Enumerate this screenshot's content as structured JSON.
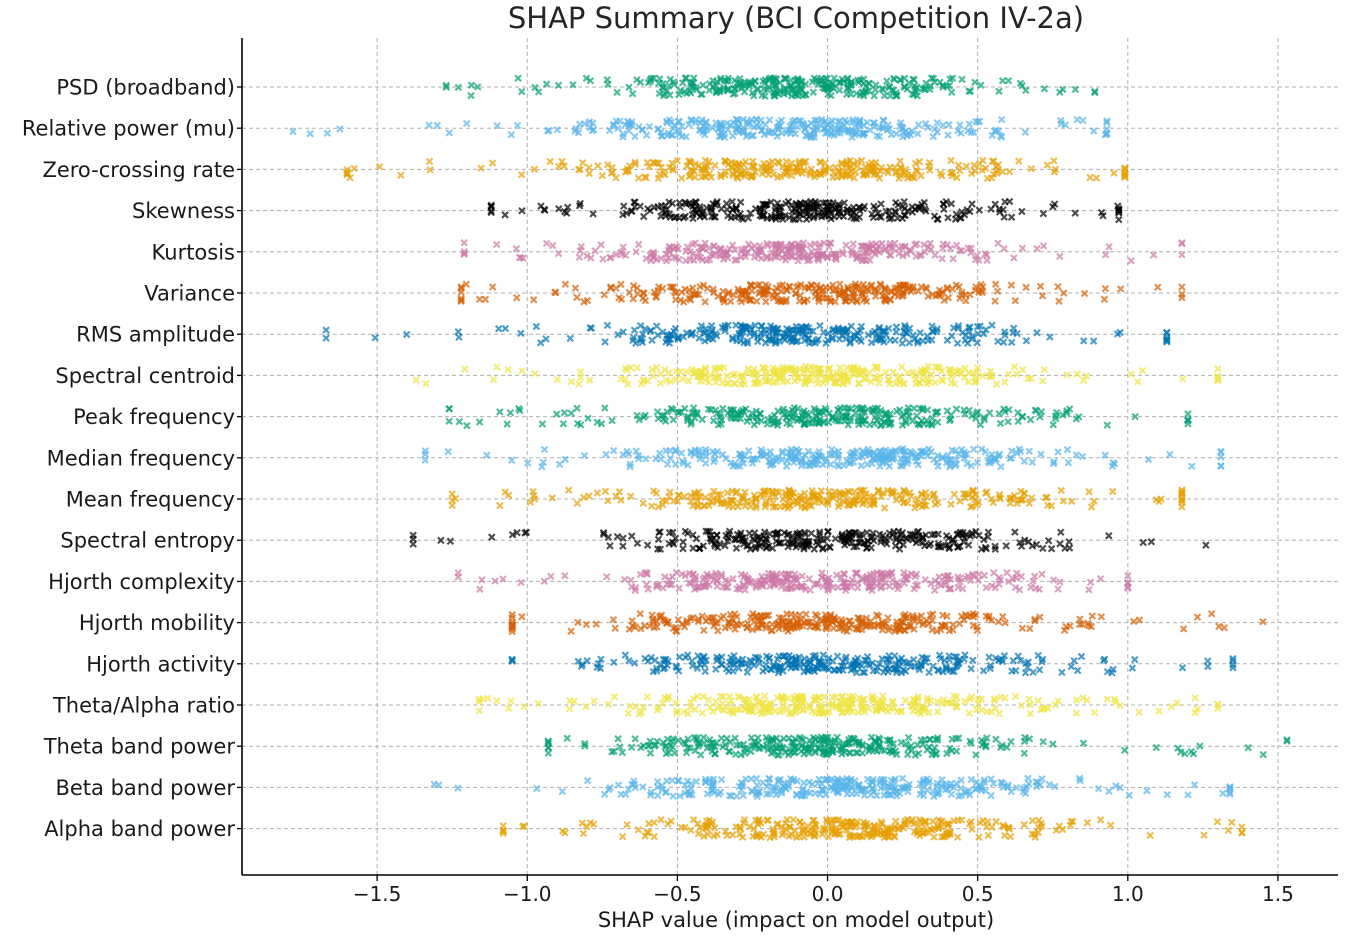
{
  "chart_data": {
    "type": "scatter",
    "title": "SHAP Summary (BCI Competition IV-2a)",
    "xlabel": "SHAP value (impact on model output)",
    "ylabel": "",
    "xlim": [
      -1.95,
      1.7
    ],
    "xticks": [
      -1.5,
      -1.0,
      -0.5,
      0.0,
      0.5,
      1.0,
      1.5
    ],
    "xtick_labels": [
      "−1.5",
      "−1.0",
      "−0.5",
      "0.0",
      "0.5",
      "1.0",
      "1.5"
    ],
    "grid": true,
    "marker": "x",
    "features": [
      {
        "name": "PSD (broadband)",
        "color": "#009E73",
        "min": -1.27,
        "max": 0.89,
        "core": [
          -0.85,
          0.75
        ]
      },
      {
        "name": "Relative power (mu)",
        "color": "#56B4E9",
        "min": -1.78,
        "max": 0.93,
        "core": [
          -1.05,
          0.7
        ]
      },
      {
        "name": "Zero-crossing rate",
        "color": "#E69F00",
        "min": -1.6,
        "max": 0.99,
        "core": [
          -1.05,
          0.85
        ]
      },
      {
        "name": "Skewness",
        "color": "#000000",
        "min": -1.12,
        "max": 0.97,
        "core": [
          -1.03,
          0.85
        ]
      },
      {
        "name": "Kurtosis",
        "color": "#CC79A7",
        "min": -1.21,
        "max": 1.18,
        "core": [
          -1.03,
          0.9
        ]
      },
      {
        "name": "Variance",
        "color": "#D55E00",
        "min": -1.22,
        "max": 1.18,
        "core": [
          -1.0,
          0.9
        ]
      },
      {
        "name": "RMS amplitude",
        "color": "#0072B2",
        "min": -1.67,
        "max": 1.13,
        "core": [
          -1.05,
          0.9
        ]
      },
      {
        "name": "Spectral centroid",
        "color": "#F0E442",
        "min": -1.37,
        "max": 1.3,
        "core": [
          -1.0,
          0.85
        ]
      },
      {
        "name": "Peak frequency",
        "color": "#009E73",
        "min": -1.26,
        "max": 1.2,
        "core": [
          -1.0,
          1.0
        ]
      },
      {
        "name": "Median frequency",
        "color": "#56B4E9",
        "min": -1.34,
        "max": 1.31,
        "core": [
          -0.95,
          1.0
        ]
      },
      {
        "name": "Mean frequency",
        "color": "#E69F00",
        "min": -1.25,
        "max": 1.18,
        "core": [
          -0.95,
          1.0
        ]
      },
      {
        "name": "Spectral entropy",
        "color": "#000000",
        "min": -1.38,
        "max": 1.26,
        "core": [
          -0.9,
          1.0
        ]
      },
      {
        "name": "Hjorth complexity",
        "color": "#CC79A7",
        "min": -1.23,
        "max": 1.0,
        "core": [
          -0.95,
          0.9
        ]
      },
      {
        "name": "Hjorth mobility",
        "color": "#D55E00",
        "min": -1.05,
        "max": 1.45,
        "core": [
          -1.05,
          1.0
        ]
      },
      {
        "name": "Hjorth activity",
        "color": "#0072B2",
        "min": -1.05,
        "max": 1.35,
        "core": [
          -1.05,
          1.1
        ]
      },
      {
        "name": "Theta/Alpha ratio",
        "color": "#F0E442",
        "min": -1.16,
        "max": 1.3,
        "core": [
          -1.0,
          1.0
        ]
      },
      {
        "name": "Theta band power",
        "color": "#009E73",
        "min": -0.93,
        "max": 1.53,
        "core": [
          -0.9,
          0.85
        ]
      },
      {
        "name": "Beta band power",
        "color": "#56B4E9",
        "min": -1.31,
        "max": 1.34,
        "core": [
          -0.9,
          1.0
        ]
      },
      {
        "name": "Alpha band power",
        "color": "#E69F00",
        "min": -1.08,
        "max": 1.38,
        "core": [
          -0.85,
          1.0
        ]
      }
    ],
    "points_per_feature": 300,
    "jitter_rows": 0.22
  }
}
